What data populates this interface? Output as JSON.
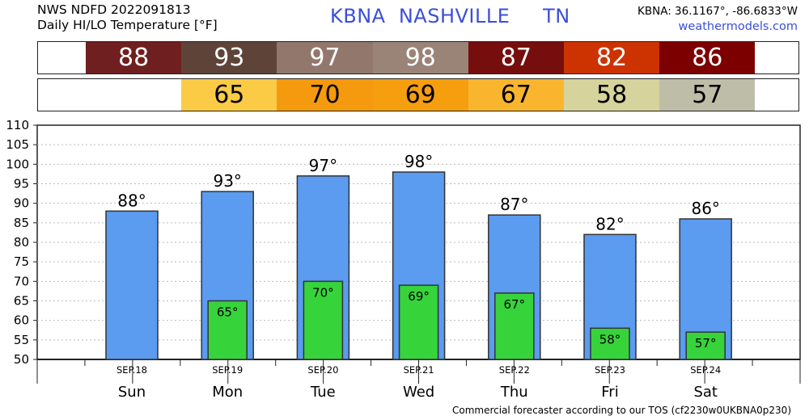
{
  "header": {
    "source_line": "NWS NDFD 2022091813",
    "product_line": "Daily HI/LO Temperature [°F]",
    "station_line": "KBNA  NASHVILLE     TN",
    "coords": "KBNA: 36.1167°, -86.6833°W",
    "site": "weathermodels.com"
  },
  "strips": {
    "hi": {
      "values": [
        "88",
        "93",
        "97",
        "98",
        "87",
        "82",
        "86"
      ],
      "colors": [
        "#6f1f1f",
        "#5e4438",
        "#92776c",
        "#9a8477",
        "#760e0e",
        "#cc3300",
        "#7d0000"
      ],
      "text_color": "#ffffff"
    },
    "lo": {
      "values": [
        "",
        "65",
        "70",
        "69",
        "67",
        "58",
        "57"
      ],
      "colors": [
        "#ffffff",
        "#fccb45",
        "#f59a0e",
        "#f59f0f",
        "#f9b52e",
        "#d6d39c",
        "#bebea8"
      ],
      "text_color": "#000000"
    }
  },
  "chart_data": {
    "type": "bar",
    "categories": [
      "Sun",
      "Mon",
      "Tue",
      "Wed",
      "Thu",
      "Fri",
      "Sat"
    ],
    "dates": [
      "SEP.18",
      "SEP.19",
      "SEP.20",
      "SEP.21",
      "SEP.22",
      "SEP.23",
      "SEP.24"
    ],
    "series": [
      {
        "values": [
          88,
          93,
          97,
          98,
          87,
          82,
          86
        ],
        "color": "#5b9bf0",
        "label_suffix": "°"
      },
      {
        "values": [
          null,
          65,
          70,
          69,
          67,
          58,
          57
        ],
        "color": "#37d33b",
        "label_suffix": "°"
      }
    ],
    "ylim": [
      50,
      110
    ],
    "yticks": [
      50,
      55,
      60,
      65,
      70,
      75,
      80,
      85,
      90,
      95,
      100,
      105,
      110
    ],
    "grid": true
  },
  "footer": "Commercial forecaster according to our TOS (cf2230w0UKBNA0p230)"
}
